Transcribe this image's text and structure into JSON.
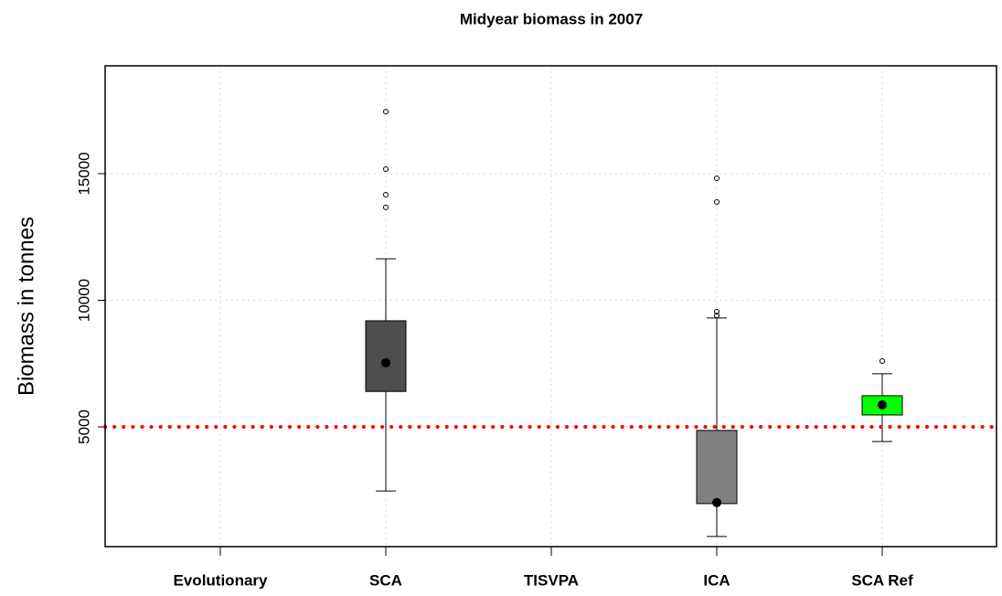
{
  "chart_data": {
    "type": "box",
    "title": "Midyear biomass in 2007",
    "y_label": "Biomass in tonnes",
    "categories": [
      "Evolutionary",
      "SCA",
      "TISVPA",
      "ICA",
      "SCA Ref"
    ],
    "colors": [
      null,
      "#4d4d4d",
      null,
      "#808080",
      "#00ff00"
    ],
    "boxes": [
      null,
      {
        "low": 2470,
        "q1": 6400,
        "median": 7530,
        "q3": 9190,
        "high": 11640,
        "outliers": [
          17450,
          15180,
          14170,
          13670
        ]
      },
      null,
      {
        "low": 670,
        "q1": 1970,
        "median": 2010,
        "q3": 4860,
        "high": 9300,
        "outliers": [
          14820,
          13880,
          9550,
          9400
        ]
      },
      {
        "low": 4420,
        "q1": 5470,
        "median": 5870,
        "q3": 6230,
        "high": 7100,
        "outliers": [
          7600
        ]
      }
    ],
    "reference_line": {
      "value": 5000,
      "color": "#ff0000"
    },
    "ylim": [
      270,
      19260
    ],
    "yticks": [
      5000,
      10000,
      15000
    ],
    "grid": true
  }
}
